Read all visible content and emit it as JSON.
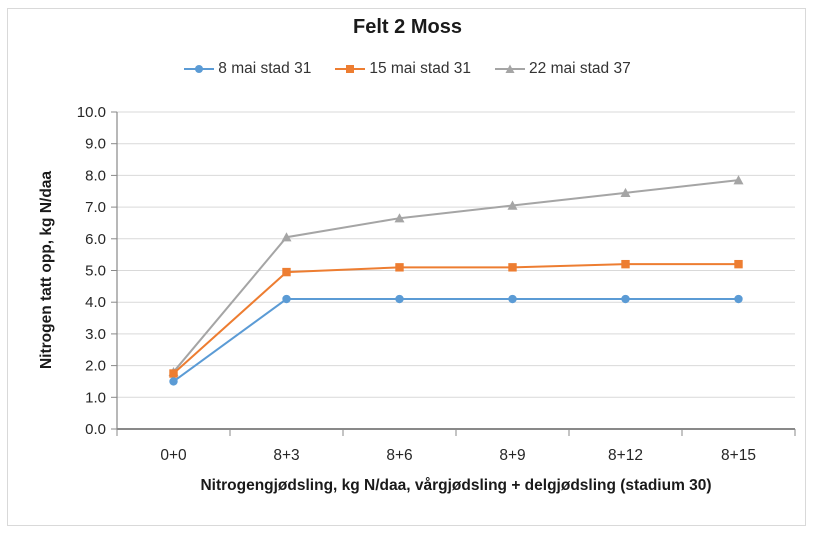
{
  "chart": {
    "title": "Felt 2 Moss",
    "xlabel": "Nitrogengjødsling, kg N/daa, vårgjødsling + delgjødsling (stadium 30)",
    "ylabel": "Nitrogen tatt opp, kg N/daa"
  },
  "chart_data": {
    "type": "line",
    "title": "Felt 2 Moss",
    "xlabel": "Nitrogengjødsling, kg N/daa, vårgjødsling + delgjødsling (stadium 30)",
    "ylabel": "Nitrogen tatt opp, kg N/daa",
    "categories": [
      "0+0",
      "8+3",
      "8+6",
      "8+9",
      "8+12",
      "8+15"
    ],
    "series": [
      {
        "name": "8 mai stad 31",
        "color": "#5B9BD5",
        "marker": "circle",
        "values": [
          1.5,
          4.1,
          4.1,
          4.1,
          4.1,
          4.1
        ]
      },
      {
        "name": "15 mai stad 31",
        "color": "#ED7D31",
        "marker": "square",
        "values": [
          1.75,
          4.95,
          5.1,
          5.1,
          5.2,
          5.2
        ]
      },
      {
        "name": "22 mai stad 37",
        "color": "#A5A5A5",
        "marker": "triangle",
        "values": [
          1.8,
          6.05,
          6.65,
          7.05,
          7.45,
          7.85
        ]
      }
    ],
    "ylim": [
      0,
      10
    ],
    "ytick_step": 1.0,
    "ytick_decimals": 1,
    "grid": true,
    "legend_position": "top",
    "colors": {
      "gridline": "#d9d9d9",
      "axis": "#898989",
      "tick_label": "#262626",
      "frame_border": "#d9d9d9"
    }
  }
}
